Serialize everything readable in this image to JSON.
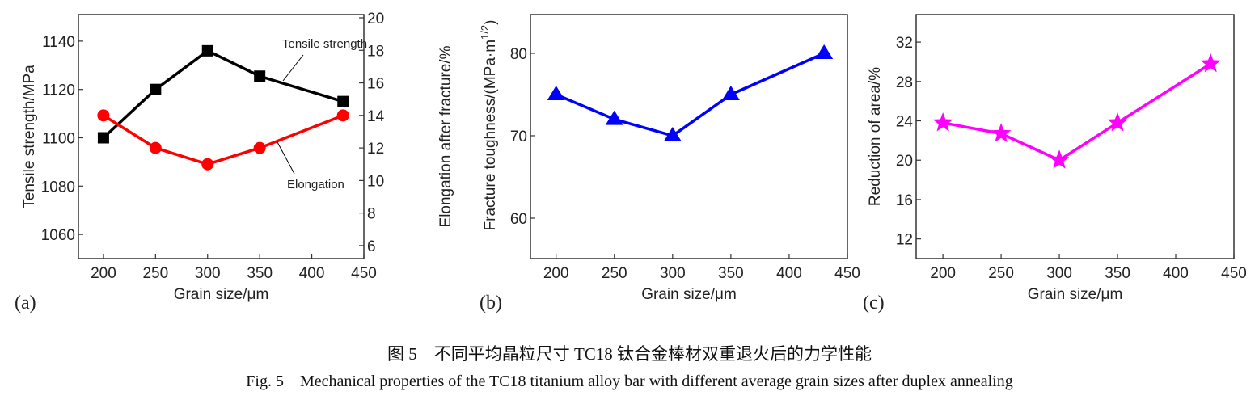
{
  "chart_data": [
    {
      "type": "line",
      "panel_label": "(a)",
      "xlabel": "Grain size/μm",
      "x": [
        200,
        250,
        300,
        350,
        430
      ],
      "xlim": [
        176,
        450
      ],
      "xticks": [
        200,
        250,
        300,
        350,
        400,
        450
      ],
      "ylabel": "Tensile strength/MPa",
      "ylim": [
        1050,
        1151
      ],
      "yticks": [
        1060,
        1080,
        1100,
        1120,
        1140
      ],
      "y2label": "Elongation after fracture/%",
      "y2lim": [
        5.2,
        20.2
      ],
      "y2ticks": [
        6,
        8,
        10,
        12,
        14,
        16,
        18,
        20
      ],
      "grid": false,
      "series": [
        {
          "name": "Tensile strength",
          "axis": "left",
          "color": "#000000",
          "marker": "square",
          "values": [
            1100,
            1120,
            1136,
            1125.5,
            1115
          ]
        },
        {
          "name": "Elongation",
          "axis": "right",
          "color": "#ff0000",
          "marker": "circle",
          "values": [
            14,
            12,
            11,
            12,
            14
          ]
        }
      ]
    },
    {
      "type": "line",
      "panel_label": "(b)",
      "xlabel": "Grain size/μm",
      "x": [
        200,
        250,
        300,
        350,
        430
      ],
      "xlim": [
        178,
        450
      ],
      "xticks": [
        200,
        250,
        300,
        350,
        400,
        450
      ],
      "ylabel": "Fracture toughness/(MPa·m",
      "ylabel_sup": "1/2",
      "ylabel_end": ")",
      "ylim": [
        55.1,
        84.7
      ],
      "yticks": [
        60,
        70,
        80
      ],
      "grid": false,
      "series": [
        {
          "color": "#0000ff",
          "marker": "triangle",
          "values": [
            75,
            72,
            70,
            75,
            80
          ]
        }
      ]
    },
    {
      "type": "line",
      "panel_label": "(c)",
      "xlabel": "Grain size/μm",
      "x": [
        200,
        250,
        300,
        350,
        430
      ],
      "xlim": [
        177,
        450
      ],
      "xticks": [
        200,
        250,
        300,
        350,
        400,
        450
      ],
      "ylabel": "Reduction of area/%",
      "ylim": [
        10,
        34.8
      ],
      "yticks": [
        12,
        16,
        20,
        24,
        28,
        32
      ],
      "grid": false,
      "series": [
        {
          "color": "#ff00ff",
          "marker": "star",
          "values": [
            23.8,
            22.7,
            20,
            23.8,
            29.8
          ]
        }
      ]
    }
  ],
  "caption": {
    "cn": "图 5　不同平均晶粒尺寸 TC18 钛合金棒材双重退火后的力学性能",
    "en": "Fig. 5　Mechanical properties of the TC18 titanium alloy bar with different average grain sizes after duplex annealing"
  }
}
